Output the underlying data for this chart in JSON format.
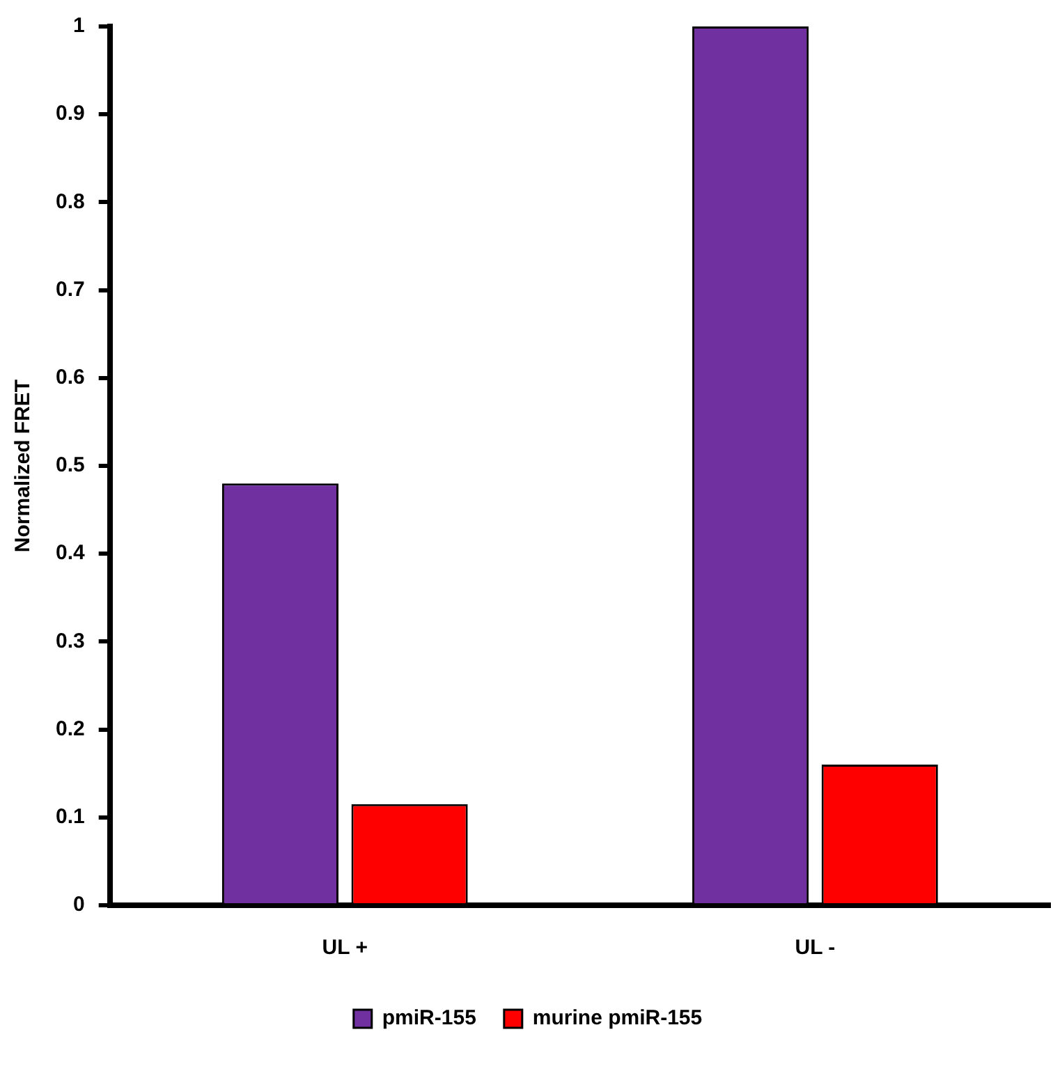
{
  "chart_data": {
    "type": "bar",
    "ylabel": "Normalized FRET",
    "categories": [
      "UL +",
      "UL -"
    ],
    "series": [
      {
        "name": "pmiR-155",
        "color": "#7030a0",
        "values": [
          0.48,
          1.0
        ]
      },
      {
        "name": "murine pmiR-155",
        "color": "#ff0000",
        "values": [
          0.115,
          0.16
        ]
      }
    ],
    "ylim": [
      0,
      1
    ],
    "yticks": [
      0,
      0.1,
      0.2,
      0.3,
      0.4,
      0.5,
      0.6,
      0.7,
      0.8,
      0.9,
      1
    ],
    "grid": false,
    "legend": "bottom"
  }
}
